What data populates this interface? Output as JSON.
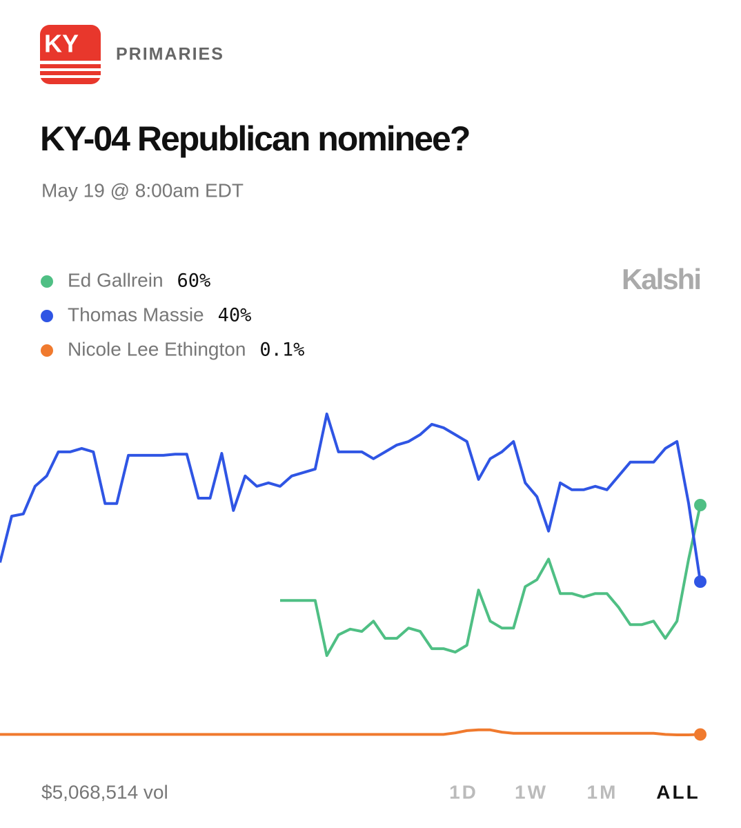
{
  "chart_data": {
    "type": "line",
    "badge": "KY",
    "category": "PRIMARIES",
    "title": "KY-04 Republican nominee?",
    "subtitle": "May 19 @ 8:00am EDT",
    "brand": "Kalshi",
    "volume": "$5,068,514 vol",
    "ranges": [
      "1D",
      "1W",
      "1M",
      "ALL"
    ],
    "active_range": "ALL",
    "ylim": [
      0,
      100
    ],
    "series": [
      {
        "name": "Ed Gallrein",
        "color": "#4fbf84",
        "values": [
          null,
          null,
          null,
          null,
          null,
          null,
          null,
          null,
          null,
          null,
          null,
          null,
          null,
          null,
          null,
          null,
          null,
          null,
          null,
          null,
          null,
          null,
          null,
          null,
          35.1,
          35.1,
          35.1,
          35.1,
          20.7,
          26.1,
          27.6,
          27.0,
          29.7,
          25.2,
          25.2,
          27.9,
          27.0,
          22.5,
          22.5,
          21.6,
          23.4,
          37.8,
          29.7,
          27.9,
          27.9,
          38.7,
          40.5,
          45.9,
          36.9,
          36.9,
          36.0,
          36.9,
          36.9,
          33.3,
          28.8,
          28.8,
          29.7,
          25.2,
          29.7,
          45.9,
          60
        ],
        "value_labels": [
          null,
          null,
          null,
          null,
          null,
          null,
          null,
          null,
          null,
          null,
          null,
          null,
          null,
          null,
          null,
          null,
          null,
          null,
          null,
          null,
          null,
          null,
          null,
          null,
          null,
          null,
          null,
          null,
          null,
          null,
          null,
          null,
          null,
          null,
          null,
          null,
          null,
          null,
          null,
          null,
          null,
          null,
          null,
          null,
          null,
          null,
          null,
          null,
          null,
          null,
          null,
          null,
          null,
          null,
          null,
          null,
          null,
          null,
          null,
          null,
          "60%"
        ]
      },
      {
        "name": "Thomas Massie",
        "color": "#2f55e4",
        "values": [
          45.0,
          57.1,
          57.7,
          64.9,
          67.6,
          73.9,
          73.9,
          74.8,
          73.9,
          60.4,
          60.4,
          73.0,
          73.0,
          73.0,
          73.0,
          73.3,
          73.3,
          61.8,
          61.8,
          73.5,
          58.6,
          67.6,
          64.9,
          65.8,
          64.9,
          67.6,
          68.5,
          69.4,
          83.8,
          73.9,
          73.9,
          73.9,
          72.1,
          73.9,
          75.7,
          76.6,
          78.4,
          81.1,
          80.2,
          78.4,
          76.6,
          66.7,
          72.1,
          73.9,
          76.6,
          65.8,
          62.2,
          53.2,
          65.8,
          64.0,
          64.0,
          64.9,
          64.0,
          67.6,
          71.2,
          71.2,
          71.2,
          74.8,
          76.6,
          60.4,
          40
        ],
        "value_labels": [
          null,
          null,
          null,
          null,
          null,
          null,
          null,
          null,
          null,
          null,
          null,
          null,
          null,
          null,
          null,
          null,
          null,
          null,
          null,
          null,
          null,
          null,
          null,
          null,
          null,
          null,
          null,
          null,
          null,
          null,
          null,
          null,
          null,
          null,
          null,
          null,
          null,
          null,
          null,
          null,
          null,
          null,
          null,
          null,
          null,
          null,
          null,
          null,
          null,
          null,
          null,
          null,
          null,
          null,
          null,
          null,
          null,
          null,
          null,
          null,
          "40%"
        ]
      },
      {
        "name": "Nicole Lee Ethington",
        "color": "#f07a2e",
        "values": [
          0.1,
          0.1,
          0.1,
          0.1,
          0.1,
          0.1,
          0.1,
          0.1,
          0.1,
          0.1,
          0.1,
          0.1,
          0.1,
          0.1,
          0.1,
          0.1,
          0.1,
          0.1,
          0.1,
          0.1,
          0.1,
          0.1,
          0.1,
          0.1,
          0.1,
          0.1,
          0.1,
          0.1,
          0.1,
          0.1,
          0.1,
          0.1,
          0.1,
          0.1,
          0.1,
          0.1,
          0.1,
          0.1,
          0.1,
          0.5,
          1.1,
          1.3,
          1.3,
          0.7,
          0.4,
          0.4,
          0.4,
          0.4,
          0.4,
          0.4,
          0.4,
          0.4,
          0.4,
          0.4,
          0.4,
          0.4,
          0.4,
          0.1,
          0,
          0,
          0.1
        ],
        "value_labels": [
          null,
          null,
          null,
          null,
          null,
          null,
          null,
          null,
          null,
          null,
          null,
          null,
          null,
          null,
          null,
          null,
          null,
          null,
          null,
          null,
          null,
          null,
          null,
          null,
          null,
          null,
          null,
          null,
          null,
          null,
          null,
          null,
          null,
          null,
          null,
          null,
          null,
          null,
          null,
          null,
          null,
          null,
          null,
          null,
          null,
          null,
          null,
          null,
          null,
          null,
          null,
          null,
          null,
          null,
          null,
          null,
          null,
          null,
          null,
          null,
          "0.1%"
        ]
      }
    ]
  }
}
